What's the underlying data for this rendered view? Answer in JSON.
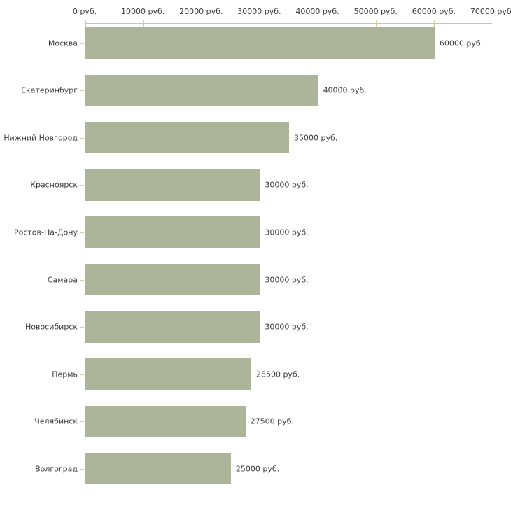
{
  "chart_data": {
    "type": "bar",
    "orientation": "horizontal",
    "title": "",
    "xlabel": "",
    "ylabel": "",
    "unit": "руб.",
    "categories": [
      "Москва",
      "Екатеринбург",
      "Нижний Новгород",
      "Красноярск",
      "Ростов-На-Дону",
      "Самара",
      "Новосибирск",
      "Пермь",
      "Челябинск",
      "Волгоград"
    ],
    "values": [
      60000,
      40000,
      35000,
      30000,
      30000,
      30000,
      30000,
      28500,
      27500,
      25000
    ],
    "value_labels": [
      "60000 руб.",
      "40000 руб.",
      "35000 руб.",
      "30000 руб.",
      "30000 руб.",
      "30000 руб.",
      "30000 руб.",
      "28500 руб.",
      "27500 руб.",
      "25000 руб."
    ],
    "xlim": [
      0,
      70000
    ],
    "x_ticks": [
      0,
      10000,
      20000,
      30000,
      40000,
      50000,
      60000,
      70000
    ],
    "x_tick_labels": [
      "0 руб.",
      "10000 руб.",
      "20000 руб.",
      "30000 руб.",
      "40000 руб.",
      "50000 руб.",
      "60000 руб.",
      "70000 руб."
    ],
    "grid": false,
    "legend": false,
    "axis_position": "top-left",
    "colors": {
      "bar": "#acb49a",
      "axis": "#c5c5c5",
      "tick": "#d4cfa3",
      "text": "#3b3b3b",
      "background": "#ffffff"
    }
  }
}
